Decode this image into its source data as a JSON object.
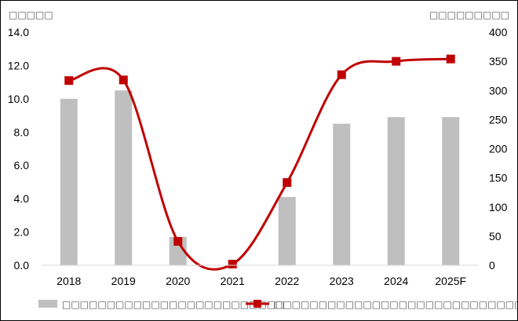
{
  "chart_data": {
    "type": "bar",
    "categories": [
      "2018",
      "2019",
      "2020",
      "2021",
      "2022",
      "2023",
      "2024",
      "2025F"
    ],
    "series": [
      {
        "name": "□□□□□□□□□□□□□□□□□□□□□□□□□",
        "type": "bar",
        "axis": "left",
        "color": "#bfbfbf",
        "values": [
          10.0,
          10.5,
          1.7,
          0.0,
          4.1,
          8.5,
          8.9,
          8.9
        ]
      },
      {
        "name": "□□□□□□□□□□□□□□□□□□□□□□□□□□□□□ Ï□□□□□□J",
        "type": "line",
        "axis": "right",
        "color": "#c00000",
        "values": [
          317,
          318,
          41,
          2,
          142,
          327,
          350,
          354
        ]
      }
    ],
    "y_left": {
      "unit_label": "□□□□□",
      "min": 0,
      "max": 14,
      "step": 2,
      "tick_labels": [
        "0.0",
        "2.0",
        "4.0",
        "6.0",
        "8.0",
        "10.0",
        "12.0",
        "14.0"
      ]
    },
    "y_right": {
      "unit_label": "□□□□□□□□□",
      "min": 0,
      "max": 400,
      "step": 50,
      "tick_labels": [
        "0",
        "50",
        "100",
        "150",
        "200",
        "250",
        "300",
        "350",
        "400"
      ]
    },
    "grid": false,
    "legend_position": "bottom"
  }
}
